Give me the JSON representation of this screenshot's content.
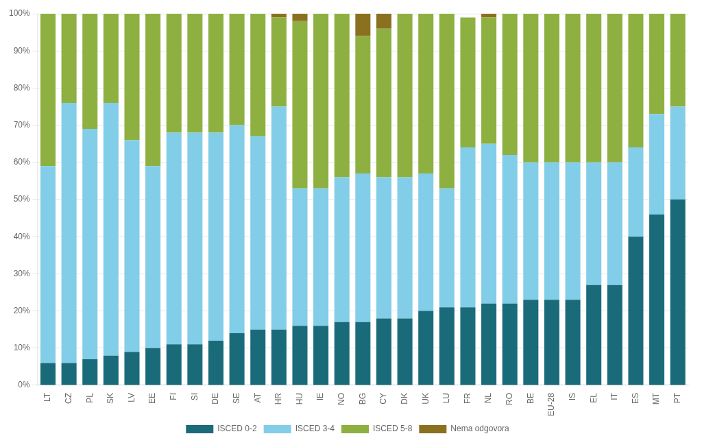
{
  "chart_data": {
    "type": "bar",
    "stacked": true,
    "categories": [
      "LT",
      "CZ",
      "PL",
      "SK",
      "LV",
      "EE",
      "FI",
      "SI",
      "DE",
      "SE",
      "AT",
      "HR",
      "HU",
      "IE",
      "NO",
      "BG",
      "CY",
      "DK",
      "UK",
      "LU",
      "FR",
      "NL",
      "RO",
      "BE",
      "EU-28",
      "IS",
      "EL",
      "IT",
      "ES",
      "MT",
      "PT"
    ],
    "series": [
      {
        "name": "ISCED 0-2",
        "color": "#1a6b7a",
        "values": [
          6,
          6,
          7,
          8,
          9,
          10,
          11,
          11,
          12,
          14,
          15,
          15,
          16,
          16,
          17,
          17,
          18,
          18,
          20,
          21,
          21,
          22,
          22,
          23,
          23,
          23,
          27,
          27,
          40,
          46,
          50
        ]
      },
      {
        "name": "ISCED 3-4",
        "color": "#82cde8",
        "values": [
          53,
          70,
          62,
          68,
          57,
          49,
          57,
          57,
          56,
          56,
          52,
          60,
          37,
          37,
          39,
          40,
          38,
          38,
          37,
          32,
          43,
          43,
          40,
          37,
          37,
          37,
          33,
          33,
          24,
          27,
          25
        ]
      },
      {
        "name": "ISCED 5-8",
        "color": "#8db040",
        "values": [
          41,
          24,
          31,
          24,
          34,
          41,
          32,
          32,
          32,
          30,
          33,
          24,
          45,
          47,
          44,
          37,
          40,
          44,
          43,
          47,
          35,
          34,
          38,
          40,
          40,
          40,
          40,
          40,
          36,
          27,
          25
        ]
      },
      {
        "name": "Nema odgovora",
        "color": "#8b7020",
        "values": [
          0,
          0,
          0,
          0,
          0,
          0,
          0,
          0,
          0,
          0,
          0,
          1,
          2,
          0,
          0,
          6,
          4,
          0,
          0,
          0,
          0,
          1,
          0,
          0,
          0,
          0,
          0,
          0,
          0,
          0,
          0
        ]
      }
    ],
    "ylim": [
      0,
      100
    ],
    "yticks": [
      {
        "value": 0,
        "label": "0%"
      },
      {
        "value": 10,
        "label": "10%"
      },
      {
        "value": 20,
        "label": "20%"
      },
      {
        "value": 30,
        "label": "30%"
      },
      {
        "value": 40,
        "label": "40%"
      },
      {
        "value": 50,
        "label": "50%"
      },
      {
        "value": 60,
        "label": "60%"
      },
      {
        "value": 70,
        "label": "70%"
      },
      {
        "value": 80,
        "label": "80%"
      },
      {
        "value": 90,
        "label": "90%"
      },
      {
        "value": 100,
        "label": "100%"
      }
    ],
    "grid": true,
    "legend": "bottom"
  }
}
